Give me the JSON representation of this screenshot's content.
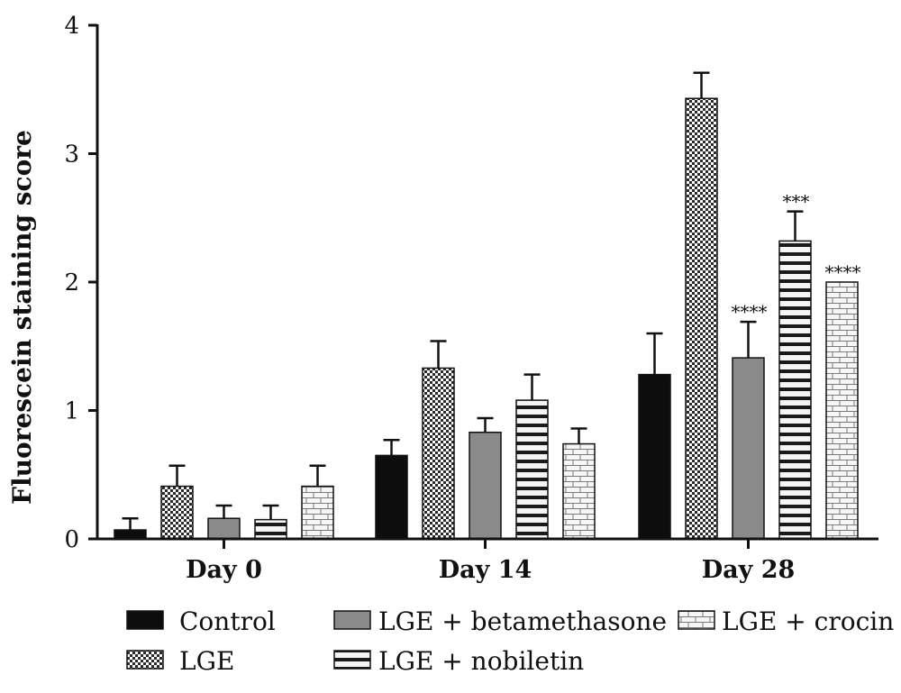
{
  "chart_data": {
    "type": "bar",
    "title": "",
    "xlabel": "",
    "ylabel": "Fluorescein staining score",
    "ylim": [
      0,
      4
    ],
    "yticks": [
      0,
      1,
      2,
      3,
      4
    ],
    "categories": [
      "Day 0",
      "Day 14",
      "Day 28"
    ],
    "grid": false,
    "legend_position": "bottom",
    "series": [
      {
        "name": "Control",
        "values": [
          0.07,
          0.65,
          1.28
        ],
        "errors": [
          0.09,
          0.12,
          0.32
        ],
        "color": "#0d0d0d",
        "pattern": "solid-black"
      },
      {
        "name": "LGE",
        "values": [
          0.41,
          1.33,
          3.43
        ],
        "errors": [
          0.16,
          0.21,
          0.2
        ],
        "color": "#cfcfcf",
        "pattern": "checker"
      },
      {
        "name": "LGE + betamethasone",
        "values": [
          0.16,
          0.83,
          1.41
        ],
        "errors": [
          0.1,
          0.11,
          0.28
        ],
        "color": "#8a8a8a",
        "pattern": "solid-gray"
      },
      {
        "name": "LGE + nobiletin",
        "values": [
          0.15,
          1.08,
          2.32
        ],
        "errors": [
          0.11,
          0.2,
          0.23
        ],
        "color": "#e6e6e6",
        "pattern": "horizontal-stripes"
      },
      {
        "name": "LGE + crocin",
        "values": [
          0.41,
          0.74,
          2.0
        ],
        "errors": [
          0.16,
          0.12,
          0.0
        ],
        "color": "#f2f2f2",
        "pattern": "bricks"
      }
    ],
    "annotations": [
      {
        "category": "Day 28",
        "series": "LGE + betamethasone",
        "text": "****"
      },
      {
        "category": "Day 28",
        "series": "LGE + nobiletin",
        "text": "***"
      },
      {
        "category": "Day 28",
        "series": "LGE + crocin",
        "text": "****"
      }
    ]
  }
}
